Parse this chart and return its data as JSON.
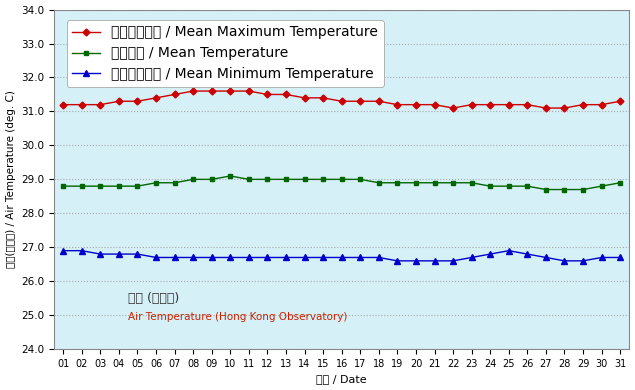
{
  "days": [
    1,
    2,
    3,
    4,
    5,
    6,
    7,
    8,
    9,
    10,
    11,
    12,
    13,
    14,
    15,
    16,
    17,
    18,
    19,
    20,
    21,
    22,
    23,
    24,
    25,
    26,
    27,
    28,
    29,
    30,
    31
  ],
  "mean_max": [
    31.2,
    31.2,
    31.2,
    31.3,
    31.3,
    31.4,
    31.5,
    31.6,
    31.6,
    31.6,
    31.6,
    31.5,
    31.5,
    31.4,
    31.4,
    31.3,
    31.3,
    31.3,
    31.2,
    31.2,
    31.2,
    31.1,
    31.2,
    31.2,
    31.2,
    31.2,
    31.1,
    31.1,
    31.2,
    31.2,
    31.3
  ],
  "mean_temp": [
    28.8,
    28.8,
    28.8,
    28.8,
    28.8,
    28.9,
    28.9,
    29.0,
    29.0,
    29.1,
    29.0,
    29.0,
    29.0,
    29.0,
    29.0,
    29.0,
    29.0,
    28.9,
    28.9,
    28.9,
    28.9,
    28.9,
    28.9,
    28.8,
    28.8,
    28.8,
    28.7,
    28.7,
    28.7,
    28.8,
    28.9
  ],
  "mean_min": [
    26.9,
    26.9,
    26.8,
    26.8,
    26.8,
    26.7,
    26.7,
    26.7,
    26.7,
    26.7,
    26.7,
    26.7,
    26.7,
    26.7,
    26.7,
    26.7,
    26.7,
    26.7,
    26.6,
    26.6,
    26.6,
    26.6,
    26.7,
    26.8,
    26.9,
    26.8,
    26.7,
    26.6,
    26.6,
    26.7,
    26.7
  ],
  "color_max": "#cc0000",
  "color_mean": "#006600",
  "color_min": "#0000cc",
  "bg_color": "#d6f0f8",
  "ylabel_zh": "氣溫(攝氏度)",
  "ylabel_en": "/ Air Temperature (deg. C)",
  "xlabel_zh": "日期",
  "xlabel_en": "/ Date",
  "legend_max_zh": "平均最高氣溫",
  "legend_max_en": "/ Mean Maximum Temperature",
  "legend_mean_zh": "平均氣溫",
  "legend_mean_en": "/ Mean Temperature",
  "legend_min_zh": "平均最低氣溫",
  "legend_min_en": "/ Mean Minimum Temperature",
  "annotation_zh": "氣溫 (天文台)",
  "annotation_en": "Air Temperature (Hong Kong Observatory)",
  "ylim_min": 24.0,
  "ylim_max": 34.0,
  "yticks": [
    24.0,
    25.0,
    26.0,
    27.0,
    28.0,
    29.0,
    30.0,
    31.0,
    32.0,
    33.0,
    34.0
  ]
}
